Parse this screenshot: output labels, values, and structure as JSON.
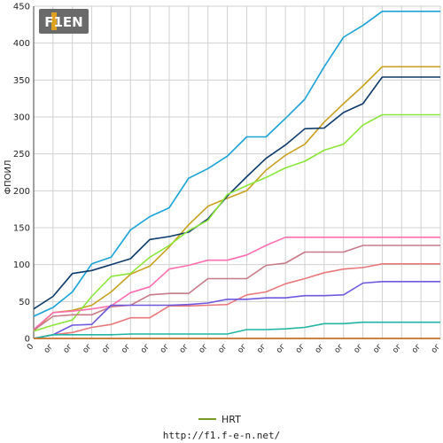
{
  "chart_data": {
    "type": "line",
    "title": "",
    "xlabel": "",
    "ylabel": "ФПОИЛ",
    "ylim": [
      0,
      450
    ],
    "yticks": [
      0,
      50,
      100,
      150,
      200,
      250,
      300,
      350,
      400,
      450
    ],
    "x": [
      0,
      1,
      2,
      3,
      4,
      5,
      6,
      7,
      8,
      9,
      10,
      11,
      12,
      13,
      14,
      15,
      16,
      17,
      18,
      19,
      20,
      21
    ],
    "xtick_labels": [
      "0",
      "ог",
      "ог",
      "ог",
      "ог",
      "ог",
      "ог",
      "ог",
      "ог",
      "ог",
      "ог",
      "ог",
      "ог",
      "ог",
      "ог",
      "ог",
      "ог",
      "ог",
      "ог",
      "ог",
      "ог",
      "ог"
    ],
    "grid": true,
    "legend_position": "bottom",
    "legend": [
      {
        "name": "HRT",
        "color": "#7a9a28"
      }
    ],
    "series": [
      {
        "color": "#1aa3d6",
        "values": [
          30,
          42,
          63,
          101,
          110,
          147,
          165,
          177,
          217,
          230,
          247,
          273,
          273,
          298,
          324,
          368,
          408,
          424,
          443,
          443,
          443,
          443
        ]
      },
      {
        "color": "#c8a020",
        "values": [
          10,
          35,
          38,
          45,
          63,
          87,
          98,
          124,
          154,
          179,
          190,
          200,
          228,
          248,
          263,
          293,
          318,
          342,
          368,
          368,
          368,
          368
        ]
      },
      {
        "color": "#0e3a6b",
        "values": [
          40,
          57,
          88,
          92,
          100,
          108,
          134,
          138,
          144,
          162,
          193,
          219,
          244,
          262,
          284,
          285,
          306,
          318,
          354,
          354,
          354,
          354
        ]
      },
      {
        "color": "#8ce63a",
        "values": [
          10,
          18,
          25,
          57,
          84,
          88,
          110,
          126,
          146,
          160,
          195,
          207,
          218,
          231,
          240,
          255,
          263,
          289,
          303,
          303,
          303,
          303
        ]
      },
      {
        "color": "#ff6eb0",
        "values": [
          12,
          35,
          37,
          40,
          44,
          62,
          70,
          94,
          99,
          106,
          106,
          113,
          126,
          137,
          137,
          137,
          137,
          137,
          137,
          137,
          137,
          137
        ]
      },
      {
        "color": "#c87a88",
        "values": [
          11,
          30,
          32,
          32,
          43,
          45,
          59,
          61,
          61,
          81,
          81,
          81,
          99,
          102,
          117,
          117,
          117,
          126,
          126,
          126,
          126,
          126
        ]
      },
      {
        "color": "#e8787a",
        "values": [
          0,
          5,
          8,
          15,
          19,
          28,
          28,
          44,
          44,
          45,
          46,
          59,
          63,
          74,
          81,
          89,
          94,
          96,
          101,
          101,
          101,
          101
        ]
      },
      {
        "color": "#6e58e0",
        "values": [
          0,
          5,
          18,
          19,
          45,
          45,
          45,
          45,
          46,
          48,
          53,
          53,
          55,
          55,
          58,
          58,
          59,
          75,
          77,
          77,
          77,
          77
        ]
      },
      {
        "color": "#1fb5a0",
        "values": [
          0,
          5,
          5,
          5,
          5,
          6,
          6,
          6,
          6,
          6,
          6,
          12,
          12,
          13,
          15,
          20,
          20,
          22,
          22,
          22,
          22,
          22
        ]
      },
      {
        "color": "#8a1020",
        "values": [
          0,
          0,
          0,
          0,
          0,
          0,
          0,
          0,
          0,
          0,
          0,
          0,
          0,
          0,
          0,
          0,
          0,
          0,
          0,
          0,
          0,
          0
        ]
      },
      {
        "color": "#d08028",
        "values": [
          0,
          0,
          0,
          0,
          0,
          0,
          0,
          0,
          0,
          0,
          0,
          0,
          0,
          0,
          0,
          0,
          0,
          0,
          0,
          0,
          0,
          0
        ]
      }
    ]
  },
  "footer": {
    "url": "http://f1.f-e-n.net/"
  },
  "logo": {
    "text": "F1EN"
  }
}
